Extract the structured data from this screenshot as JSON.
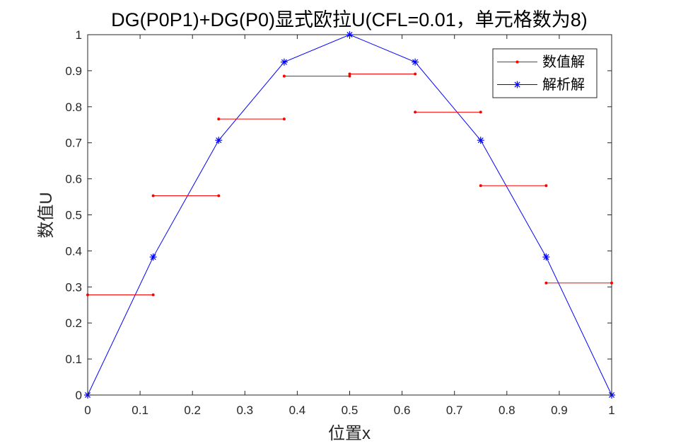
{
  "chart_data": {
    "type": "line",
    "title": "DG(P0P1)+DG(P0)显式欧拉U(CFL=0.01，单元格数为8)",
    "xlabel": "位置x",
    "ylabel": "数值U",
    "xlim": [
      0,
      1
    ],
    "ylim": [
      0,
      1
    ],
    "xticks": [
      "0",
      "0.1",
      "0.2",
      "0.3",
      "0.4",
      "0.5",
      "0.6",
      "0.7",
      "0.8",
      "0.9",
      "1"
    ],
    "yticks": [
      "0",
      "0.1",
      "0.2",
      "0.3",
      "0.4",
      "0.5",
      "0.6",
      "0.7",
      "0.8",
      "0.9",
      "1"
    ],
    "grid": false,
    "legend_position": "top-right",
    "series": [
      {
        "name": "数值解",
        "color": "#ff0000",
        "marker": "dot",
        "style": "piecewise-constant",
        "segments": [
          {
            "x": [
              0,
              0.125
            ],
            "y": [
              0.278,
              0.278
            ]
          },
          {
            "x": [
              0.125,
              0.25
            ],
            "y": [
              0.553,
              0.553
            ]
          },
          {
            "x": [
              0.25,
              0.375
            ],
            "y": [
              0.766,
              0.766
            ]
          },
          {
            "x": [
              0.375,
              0.5
            ],
            "y": [
              0.885,
              0.885
            ]
          },
          {
            "x": [
              0.5,
              0.625
            ],
            "y": [
              0.891,
              0.891
            ]
          },
          {
            "x": [
              0.625,
              0.75
            ],
            "y": [
              0.785,
              0.785
            ]
          },
          {
            "x": [
              0.75,
              0.875
            ],
            "y": [
              0.581,
              0.581
            ]
          },
          {
            "x": [
              0.875,
              1.0
            ],
            "y": [
              0.311,
              0.311
            ]
          }
        ]
      },
      {
        "name": "解析解",
        "color": "#0000ff",
        "marker": "asterisk",
        "style": "line",
        "x": [
          0,
          0.125,
          0.25,
          0.375,
          0.5,
          0.625,
          0.75,
          0.875,
          1.0
        ],
        "y": [
          0,
          0.383,
          0.707,
          0.924,
          1.0,
          0.924,
          0.707,
          0.383,
          0
        ]
      }
    ]
  }
}
